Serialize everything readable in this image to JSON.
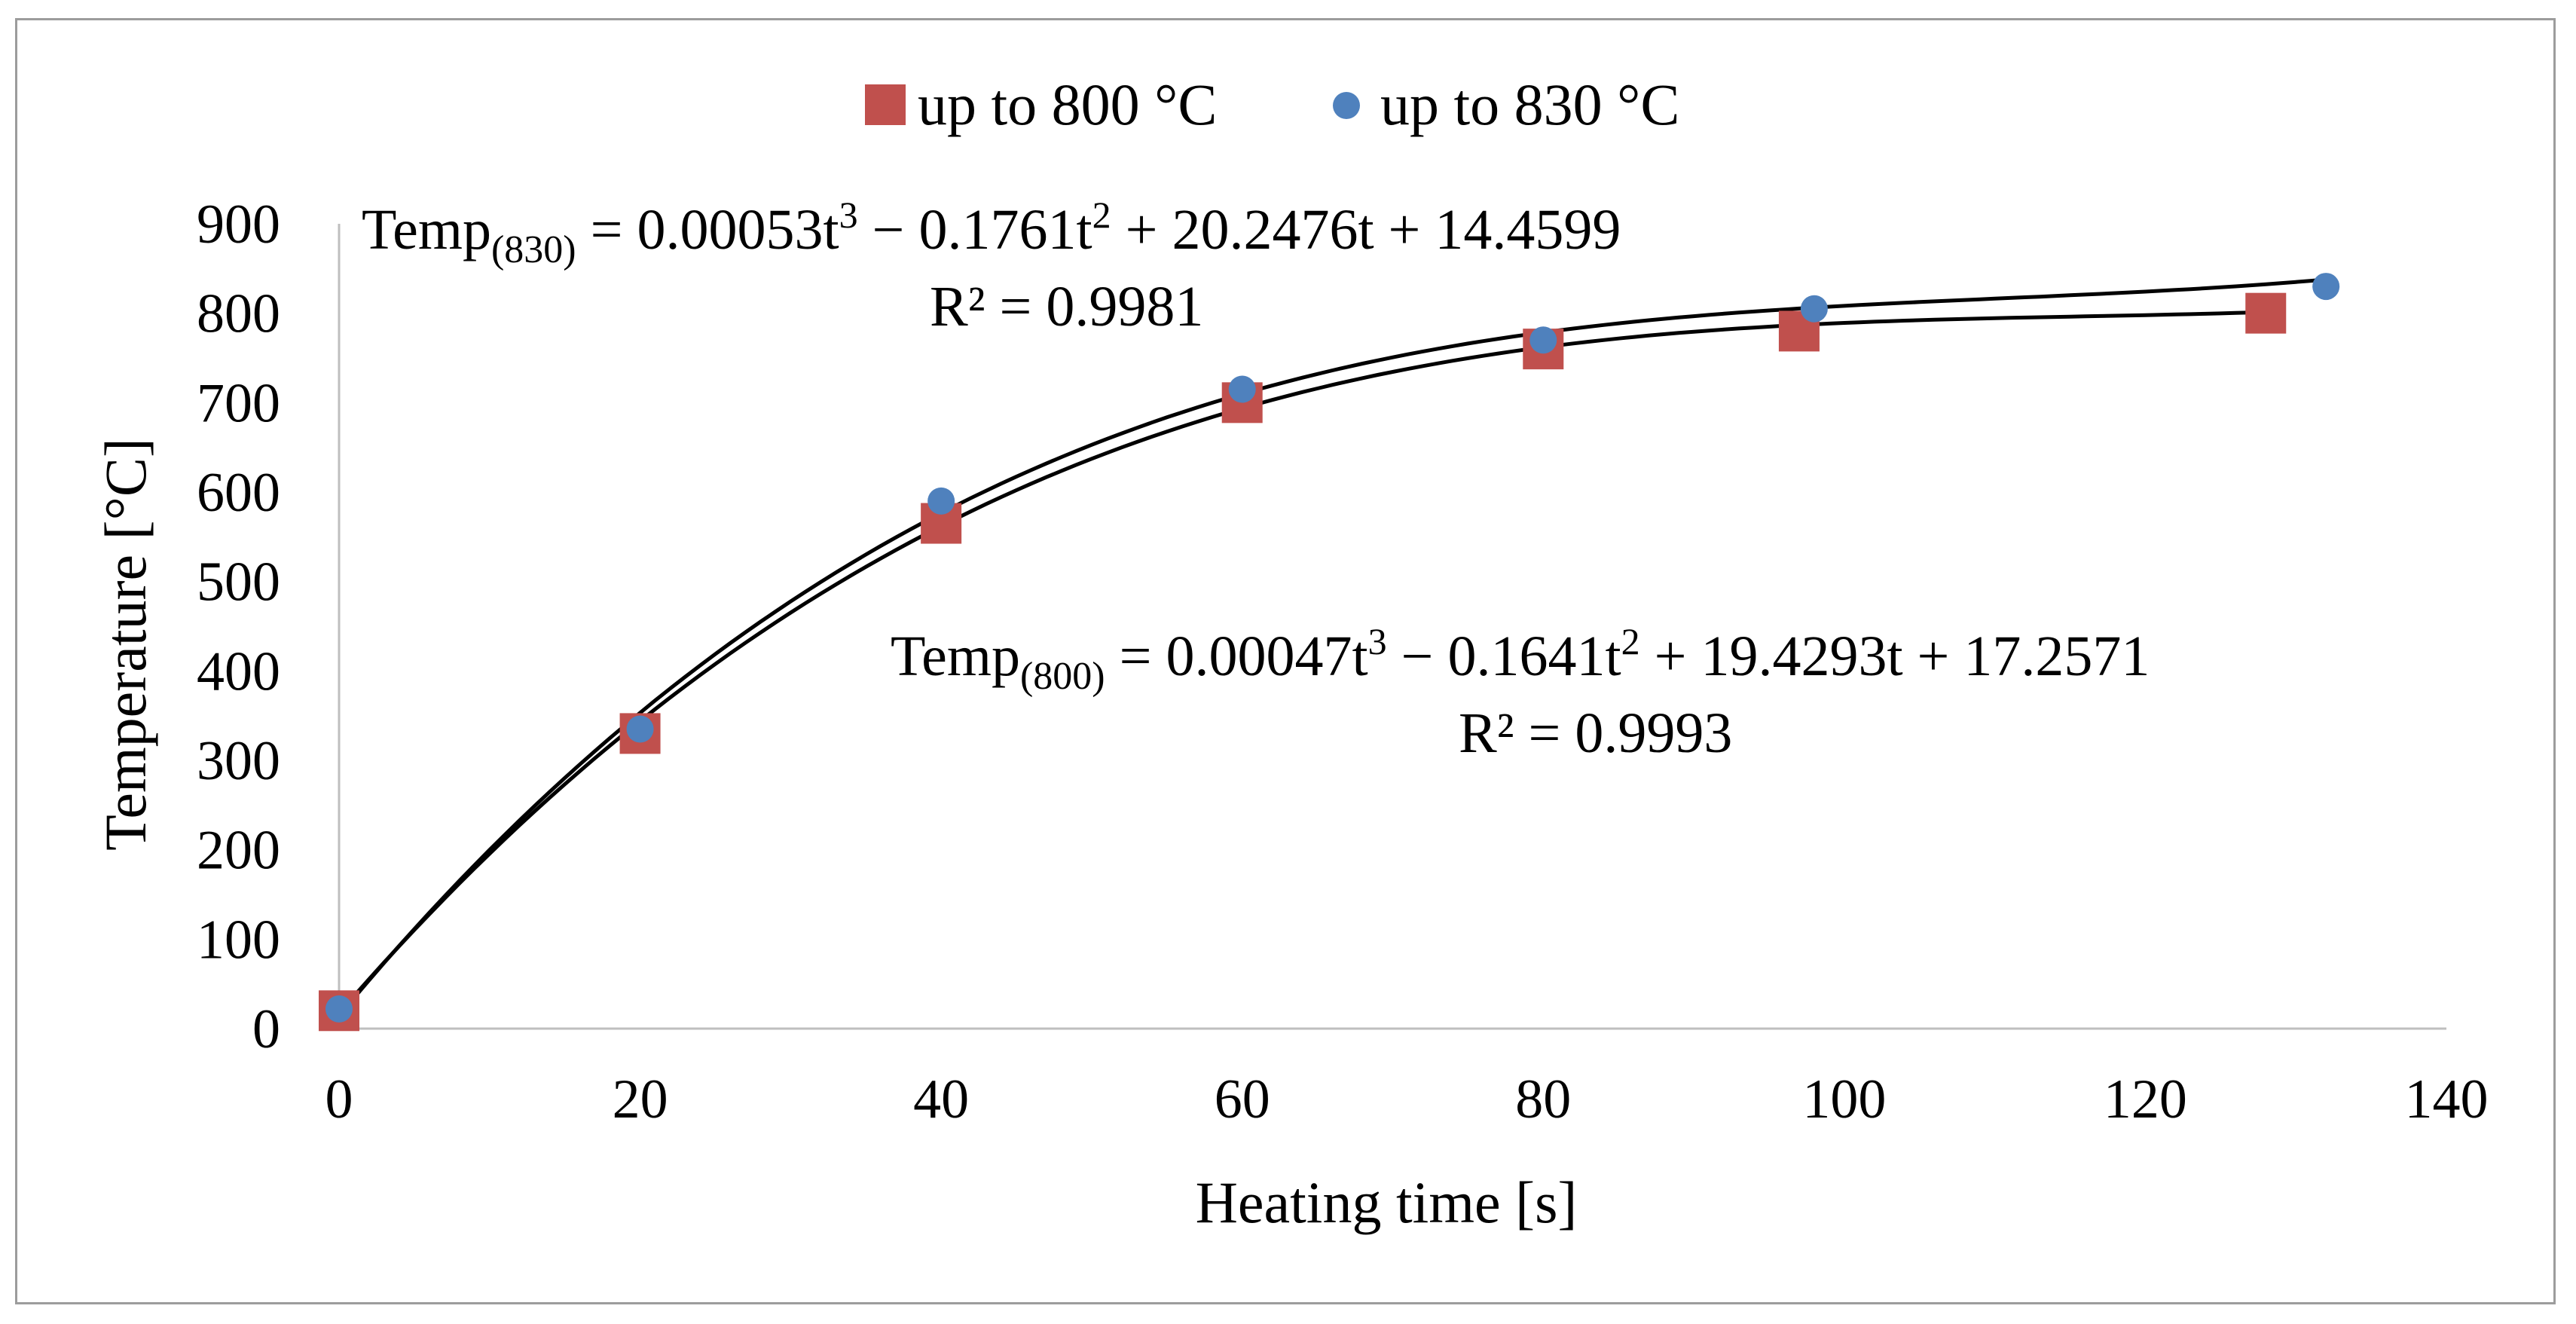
{
  "chart_data": {
    "type": "scatter",
    "title": "",
    "xlabel": "Heating time [s]",
    "ylabel": "Temperature [°C]",
    "xlim": [
      0,
      140
    ],
    "ylim": [
      0,
      900
    ],
    "x_ticks": [
      0,
      20,
      40,
      60,
      80,
      100,
      120,
      140
    ],
    "y_ticks": [
      0,
      100,
      200,
      300,
      400,
      500,
      600,
      700,
      800,
      900
    ],
    "grid": false,
    "legend_position": "top-center",
    "series": [
      {
        "name": "up to 800 °C",
        "marker": "square",
        "color": "#c0504d",
        "x": [
          0,
          20,
          40,
          60,
          80,
          97,
          128
        ],
        "y": [
          20,
          330,
          565,
          700,
          760,
          780,
          800
        ],
        "fit": {
          "a3": 0.00047,
          "a2": -0.1641,
          "a1": 19.4293,
          "a0": 17.2571
        }
      },
      {
        "name": "up to 830 °C",
        "marker": "circle",
        "color": "#4f81bd",
        "x": [
          0,
          20,
          40,
          60,
          80,
          98,
          132
        ],
        "y": [
          22,
          335,
          590,
          715,
          770,
          805,
          830
        ],
        "fit": {
          "a3": 0.00053,
          "a2": -0.1761,
          "a1": 20.2476,
          "a0": 14.4599
        }
      }
    ],
    "annotations": {
      "eq830": {
        "name": "Temp",
        "sub": "(830)",
        "part1": " = 0.00053t",
        "exp1": "3",
        "part2": " − 0.1761t",
        "exp2": "2",
        "part3": " + 20.2476t + 14.4599",
        "r2": "R² = 0.9981"
      },
      "eq800": {
        "name": "Temp",
        "sub": "(800)",
        "part1": " = 0.00047t",
        "exp1": "3",
        "part2": " − 0.1641t",
        "exp2": "2",
        "part3": " + 19.4293t + 17.2571",
        "r2": "R² = 0.9993"
      }
    }
  }
}
